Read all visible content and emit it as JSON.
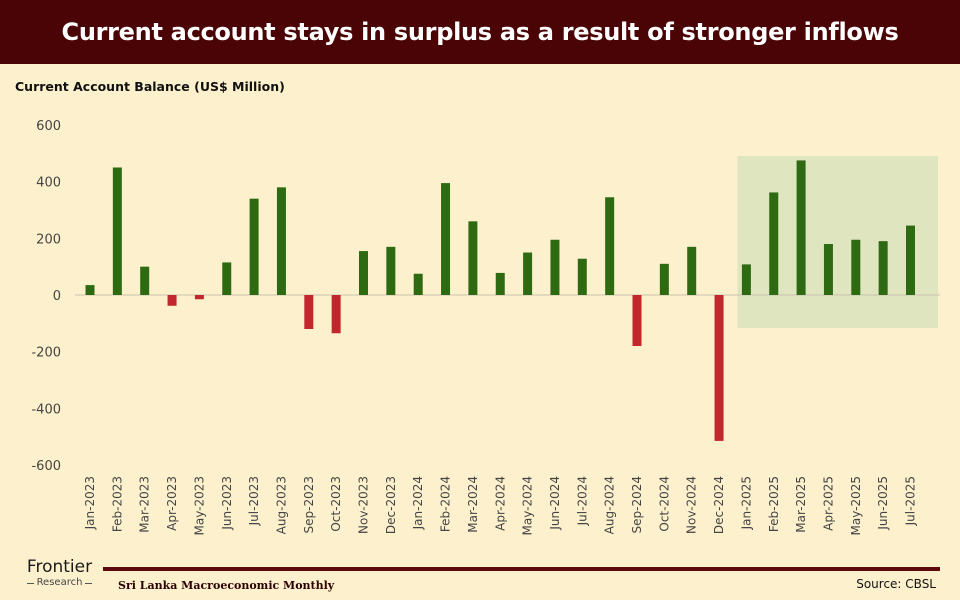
{
  "header": {
    "title": "Current account stays in surplus as a result of stronger inflows"
  },
  "chart_data": {
    "type": "bar",
    "title": "Current account stays in surplus as a result of stronger inflows",
    "ylabel": "Current Account Balance (US$ Million)",
    "xlabel": "",
    "ylim": [
      -600,
      600
    ],
    "yticks": [
      600,
      400,
      200,
      0,
      -200,
      -400,
      -600
    ],
    "grid": false,
    "categories": [
      "Jan-2023",
      "Feb-2023",
      "Mar-2023",
      "Apr-2023",
      "May-2023",
      "Jun-2023",
      "Jul-2023",
      "Aug-2023",
      "Sep-2023",
      "Oct-2023",
      "Nov-2023",
      "Dec-2023",
      "Jan-2024",
      "Feb-2024",
      "Mar-2024",
      "Apr-2024",
      "May-2024",
      "Jun-2024",
      "Jul-2024",
      "Aug-2024",
      "Sep-2024",
      "Oct-2024",
      "Nov-2024",
      "Dec-2024",
      "Jan-2025",
      "Feb-2025",
      "Mar-2025",
      "Apr-2025",
      "May-2025",
      "Jun-2025",
      "Jul-2025"
    ],
    "values": [
      35,
      450,
      100,
      -38,
      -15,
      115,
      340,
      380,
      -120,
      -135,
      155,
      170,
      75,
      395,
      260,
      78,
      150,
      195,
      128,
      345,
      -180,
      110,
      170,
      -515,
      108,
      362,
      475,
      180,
      195,
      190,
      245
    ],
    "positive_color": "#2d6a12",
    "negative_color": "#c1272d",
    "highlight": {
      "from": "Jan-2025",
      "to": "Jul-2025",
      "color": "#dee5bf"
    }
  },
  "footer": {
    "logo_brand": "Frontier",
    "logo_sub": "Research",
    "publication": "Sri Lanka  Macroeconomic Monthly",
    "source": "Source: CBSL"
  }
}
